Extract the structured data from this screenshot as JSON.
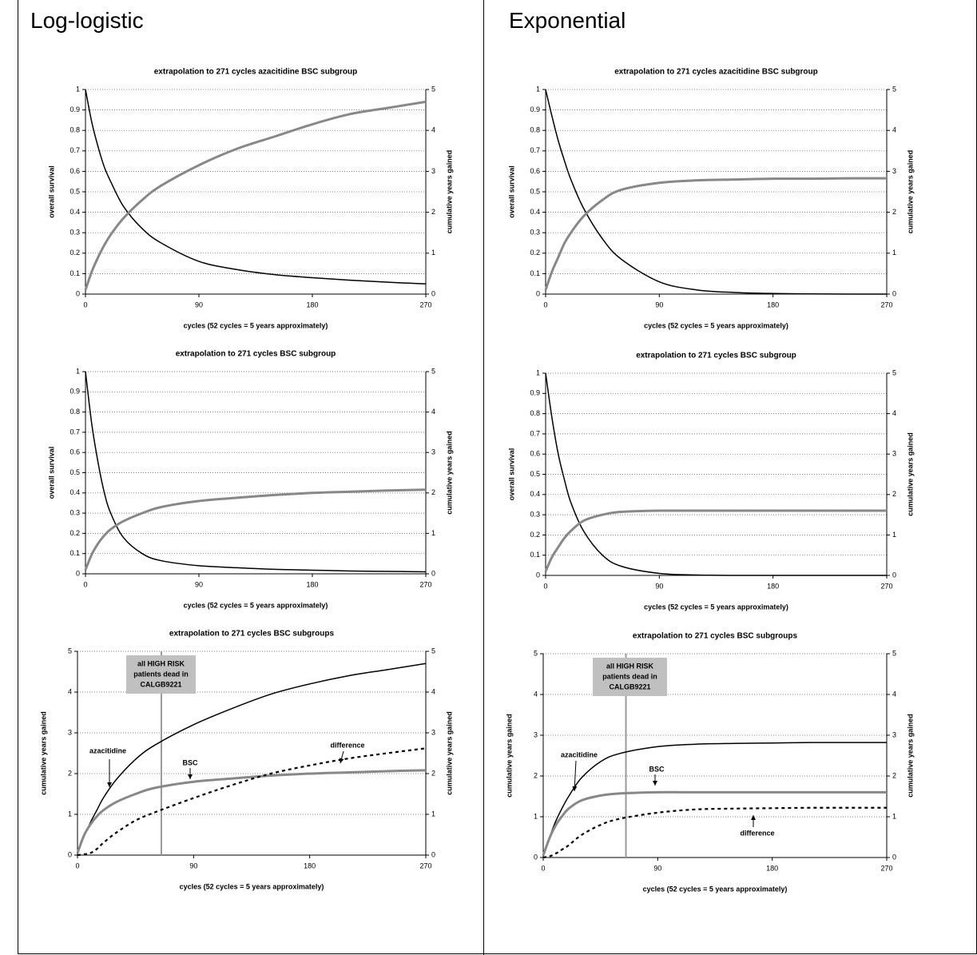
{
  "panels": [
    {
      "heading": "Log-logistic"
    },
    {
      "heading": "Exponential"
    }
  ],
  "chart_data": [
    {
      "type": "line",
      "title": "extrapolation to 271 cycles  azacitidine BSC subgroup",
      "xlabel": "cycles (52 cycles = 5 years approximately)",
      "ylabel": "overall survival",
      "y2label": "cumulative years gained",
      "x": [
        0,
        5,
        10,
        15,
        20,
        30,
        45,
        60,
        90,
        120,
        150,
        180,
        210,
        240,
        270
      ],
      "series": [
        {
          "color": "#000000",
          "values": [
            1,
            0.84,
            0.72,
            0.62,
            0.55,
            0.43,
            0.32,
            0.25,
            0.16,
            0.12,
            0.095,
            0.08,
            0.068,
            0.058,
            0.05
          ]
        },
        {
          "color": "#888888",
          "axis": "y2",
          "values": [
            0.1,
            0.55,
            0.9,
            1.2,
            1.45,
            1.85,
            2.3,
            2.65,
            3.15,
            3.55,
            3.85,
            4.15,
            4.4,
            4.55,
            4.7
          ]
        }
      ],
      "xlim": [
        0,
        270
      ],
      "xticks": [
        0,
        90,
        180,
        270
      ],
      "ylim": [
        0,
        1
      ],
      "yticks": [
        0,
        0.1,
        0.2,
        0.3,
        0.4,
        0.5,
        0.6,
        0.7,
        0.8,
        0.9,
        1
      ],
      "y2lim": [
        0,
        5
      ],
      "y2ticks": [
        0,
        1,
        2,
        3,
        4,
        5
      ],
      "grid": true
    },
    {
      "type": "line",
      "title": "extrapolation to 271 cycles  BSC subgroup",
      "xlabel": "cycles (52 cycles = 5 years approximately)",
      "ylabel": "overall survival",
      "y2label": "cumulative years gained",
      "x": [
        0,
        5,
        10,
        15,
        20,
        30,
        45,
        60,
        90,
        120,
        150,
        180,
        210,
        240,
        270
      ],
      "series": [
        {
          "color": "#000000",
          "values": [
            1,
            0.74,
            0.55,
            0.4,
            0.3,
            0.18,
            0.1,
            0.065,
            0.04,
            0.03,
            0.022,
            0.018,
            0.014,
            0.012,
            0.01
          ]
        },
        {
          "color": "#888888",
          "axis": "y2",
          "values": [
            0.1,
            0.48,
            0.75,
            0.95,
            1.1,
            1.3,
            1.5,
            1.65,
            1.8,
            1.88,
            1.95,
            2.0,
            2.03,
            2.06,
            2.08
          ]
        }
      ],
      "xlim": [
        0,
        270
      ],
      "xticks": [
        0,
        90,
        180,
        270
      ],
      "ylim": [
        0,
        1
      ],
      "yticks": [
        0,
        0.1,
        0.2,
        0.3,
        0.4,
        0.5,
        0.6,
        0.7,
        0.8,
        0.9,
        1
      ],
      "y2lim": [
        0,
        5
      ],
      "y2ticks": [
        0,
        1,
        2,
        3,
        4,
        5
      ],
      "grid": true
    },
    {
      "type": "line",
      "title": "extrapolation to 271 cycles  BSC subgroups",
      "xlabel": "cycles (52 cycles = 5 years approximately)",
      "ylabel": "cumulative years gained",
      "y2label": "cumulative years gained",
      "x": [
        0,
        5,
        10,
        15,
        20,
        30,
        45,
        60,
        90,
        120,
        150,
        180,
        210,
        240,
        270
      ],
      "series": [
        {
          "name": "azacitidine",
          "color": "#000000",
          "values": [
            0.05,
            0.45,
            0.8,
            1.1,
            1.4,
            1.85,
            2.35,
            2.7,
            3.2,
            3.6,
            3.95,
            4.2,
            4.4,
            4.55,
            4.7
          ]
        },
        {
          "name": "BSC",
          "color": "#888888",
          "values": [
            0.05,
            0.48,
            0.75,
            0.95,
            1.1,
            1.3,
            1.5,
            1.65,
            1.8,
            1.88,
            1.95,
            2.0,
            2.03,
            2.06,
            2.08
          ]
        },
        {
          "name": "difference",
          "color": "#000000",
          "dashed": true,
          "values": [
            0,
            0.02,
            0.05,
            0.15,
            0.3,
            0.55,
            0.85,
            1.05,
            1.4,
            1.72,
            2.0,
            2.2,
            2.37,
            2.5,
            2.62
          ]
        }
      ],
      "annotation": {
        "lines": [
          "all HIGH RISK",
          "patients dead in",
          "CALGB9221"
        ],
        "x": 65
      },
      "xlim": [
        0,
        270
      ],
      "xticks": [
        0,
        90,
        180,
        270
      ],
      "ylim": [
        0,
        5
      ],
      "yticks": [
        0,
        1,
        2,
        3,
        4,
        5
      ],
      "y2lim": [
        0,
        5
      ],
      "y2ticks": [
        0,
        1,
        2,
        3,
        4,
        5
      ],
      "grid": true
    },
    {
      "type": "line",
      "title": "extrapolation to 271 cycles  azacitidine BSC subgroup",
      "xlabel": "cycles (52 cycles = 5 years approximately)",
      "ylabel": "overall survival",
      "y2label": "cumulative years gained",
      "x": [
        0,
        5,
        10,
        15,
        20,
        30,
        45,
        60,
        90,
        120,
        150,
        180,
        210,
        240,
        270
      ],
      "series": [
        {
          "color": "#000000",
          "values": [
            1,
            0.87,
            0.75,
            0.65,
            0.56,
            0.42,
            0.27,
            0.17,
            0.06,
            0.02,
            0.008,
            0.003,
            0.001,
            0,
            0
          ]
        },
        {
          "color": "#888888",
          "axis": "y2",
          "values": [
            0.1,
            0.55,
            0.9,
            1.25,
            1.5,
            1.9,
            2.3,
            2.55,
            2.72,
            2.78,
            2.8,
            2.82,
            2.82,
            2.83,
            2.83
          ]
        }
      ],
      "xlim": [
        0,
        270
      ],
      "xticks": [
        0,
        90,
        180,
        270
      ],
      "ylim": [
        0,
        1
      ],
      "yticks": [
        0,
        0.1,
        0.2,
        0.3,
        0.4,
        0.5,
        0.6,
        0.7,
        0.8,
        0.9,
        1
      ],
      "y2lim": [
        0,
        5
      ],
      "y2ticks": [
        0,
        1,
        2,
        3,
        4,
        5
      ],
      "grid": true
    },
    {
      "type": "line",
      "title": "extrapolation to 271 cycles  BSC subgroup",
      "xlabel": "cycles (52 cycles = 5 years approximately)",
      "ylabel": "overall survival",
      "y2label": "cumulative years gained",
      "x": [
        0,
        5,
        10,
        15,
        20,
        30,
        45,
        60,
        90,
        120,
        150,
        180,
        210,
        240,
        270
      ],
      "series": [
        {
          "color": "#000000",
          "values": [
            1,
            0.78,
            0.6,
            0.47,
            0.36,
            0.22,
            0.1,
            0.045,
            0.01,
            0.002,
            0,
            0,
            0,
            0,
            0
          ]
        },
        {
          "color": "#888888",
          "axis": "y2",
          "values": [
            0.1,
            0.45,
            0.7,
            0.93,
            1.1,
            1.35,
            1.5,
            1.57,
            1.6,
            1.6,
            1.6,
            1.6,
            1.6,
            1.6,
            1.6
          ]
        }
      ],
      "xlim": [
        0,
        270
      ],
      "xticks": [
        0,
        90,
        180,
        270
      ],
      "ylim": [
        0,
        1
      ],
      "yticks": [
        0,
        0.1,
        0.2,
        0.3,
        0.4,
        0.5,
        0.6,
        0.7,
        0.8,
        0.9,
        1
      ],
      "y2lim": [
        0,
        5
      ],
      "y2ticks": [
        0,
        1,
        2,
        3,
        4,
        5
      ],
      "grid": true
    },
    {
      "type": "line",
      "title": "extrapolation to 271 cycles  BSC subgroups",
      "xlabel": "cycles (52 cycles = 5 years approximately)",
      "ylabel": "cumulative years gained",
      "y2label": "cumulative years gained",
      "x": [
        0,
        5,
        10,
        15,
        20,
        30,
        45,
        60,
        90,
        120,
        150,
        180,
        210,
        240,
        270
      ],
      "series": [
        {
          "name": "azacitidine",
          "color": "#000000",
          "values": [
            0.05,
            0.5,
            0.9,
            1.22,
            1.5,
            1.95,
            2.35,
            2.55,
            2.72,
            2.78,
            2.8,
            2.81,
            2.82,
            2.82,
            2.82
          ]
        },
        {
          "name": "BSC",
          "color": "#888888",
          "values": [
            0.05,
            0.48,
            0.8,
            1.02,
            1.2,
            1.4,
            1.52,
            1.57,
            1.6,
            1.6,
            1.6,
            1.6,
            1.6,
            1.6,
            1.6
          ]
        },
        {
          "name": "difference",
          "color": "#000000",
          "dashed": true,
          "values": [
            0,
            0.03,
            0.1,
            0.2,
            0.3,
            0.55,
            0.8,
            0.95,
            1.1,
            1.18,
            1.2,
            1.21,
            1.22,
            1.22,
            1.22
          ]
        }
      ],
      "annotation": {
        "lines": [
          "all HIGH RISK",
          "patients dead in",
          "CALGB9221"
        ],
        "x": 65
      },
      "xlim": [
        0,
        270
      ],
      "xticks": [
        0,
        90,
        180,
        270
      ],
      "ylim": [
        0,
        5
      ],
      "yticks": [
        0,
        1,
        2,
        3,
        4,
        5
      ],
      "y2lim": [
        0,
        5
      ],
      "y2ticks": [
        0,
        1,
        2,
        3,
        4,
        5
      ],
      "grid": true
    }
  ]
}
